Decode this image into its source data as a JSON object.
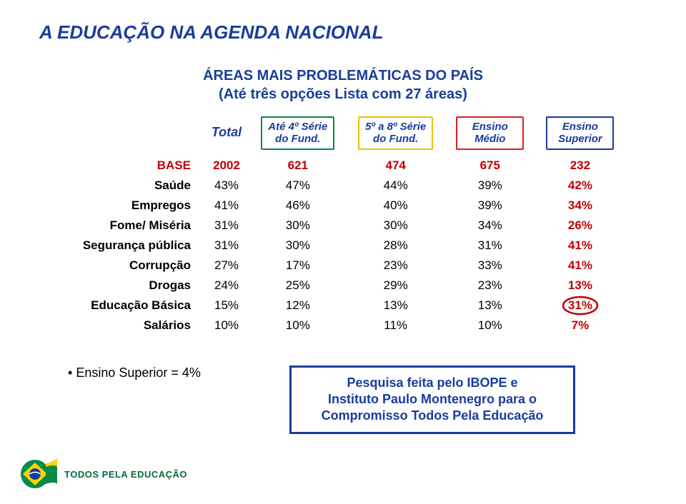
{
  "title": "A EDUCAÇÃO NA AGENDA NACIONAL",
  "subtitle_line1": "ÁREAS MAIS PROBLEMÁTICAS DO PAÍS",
  "subtitle_line2": "(Até três opções Lista com 27 áreas)",
  "columns": {
    "total": "Total",
    "c1_l1": "Até 4º Série",
    "c1_l2": "do Fund.",
    "c2_l1": "5º a 8º Série",
    "c2_l2": "do Fund.",
    "c3_l1": "Ensino",
    "c3_l2": "Médio",
    "c4_l1": "Ensino",
    "c4_l2": "Superior"
  },
  "col_box_colors": {
    "c1": "#058a4a",
    "c2": "#e8c200",
    "c3": "#d82020",
    "c4": "#1a3c9c"
  },
  "rows": [
    {
      "label": "BASE",
      "vals": [
        "2002",
        "621",
        "474",
        "675",
        "232"
      ],
      "base": true
    },
    {
      "label": "Saúde",
      "vals": [
        "43%",
        "47%",
        "44%",
        "39%",
        "42%"
      ]
    },
    {
      "label": "Empregos",
      "vals": [
        "41%",
        "46%",
        "40%",
        "39%",
        "34%"
      ]
    },
    {
      "label": "Fome/ Miséria",
      "vals": [
        "31%",
        "30%",
        "30%",
        "34%",
        "26%"
      ]
    },
    {
      "label": "Segurança pública",
      "vals": [
        "31%",
        "30%",
        "28%",
        "31%",
        "41%"
      ]
    },
    {
      "label": "Corrupção",
      "vals": [
        "27%",
        "17%",
        "23%",
        "33%",
        "41%"
      ]
    },
    {
      "label": "Drogas",
      "vals": [
        "24%",
        "25%",
        "29%",
        "23%",
        "13%"
      ]
    },
    {
      "label": "Educação Básica",
      "vals": [
        "15%",
        "12%",
        "13%",
        "13%",
        "31%"
      ],
      "circle": 4
    },
    {
      "label": "Salários",
      "vals": [
        "10%",
        "10%",
        "11%",
        "10%",
        "7%"
      ]
    }
  ],
  "bullet": "Ensino Superior = 4%",
  "callout_l1": "Pesquisa feita pelo IBOPE e",
  "callout_l2": "Instituto Paulo Montenegro para o",
  "callout_l3": "Compromisso Todos Pela Educação",
  "footer_brand": "TODOS PELA EDUCAÇÃO",
  "highlight_column_index": 4,
  "circle_color": "#c00000"
}
